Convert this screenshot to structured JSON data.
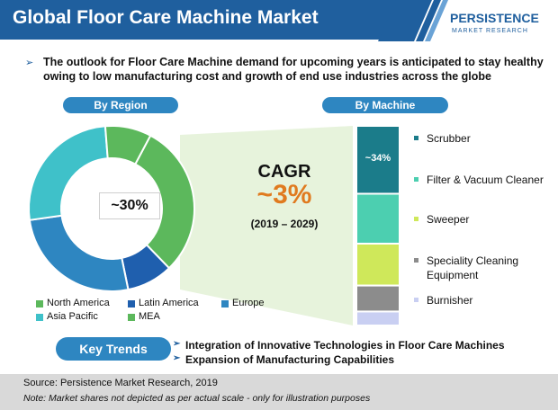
{
  "header": {
    "title": "Global Floor Care Machine Market",
    "logo_name": "PERSISTENCE",
    "logo_sub": "MARKET RESEARCH",
    "bar_color": "#1f5f9e"
  },
  "outlook": {
    "text": "The outlook for Floor Care Machine demand for upcoming years is anticipated to stay healthy owing to low manufacturing cost and growth of end use industries across the globe"
  },
  "region": {
    "pill_label": "By Region",
    "share_label": "~30%"
  },
  "machine": {
    "pill_label": "By Machine",
    "bar_label": "~34%"
  },
  "cagr": {
    "label": "CAGR",
    "value": "~3%",
    "period": "(2019 – 2029)"
  },
  "key_trends": {
    "label": "Key Trends",
    "items": [
      "Integration of Innovative Technologies in Floor Care Machines",
      "Expansion of Manufacturing Capabilities"
    ]
  },
  "footer": {
    "source": "Source: Persistence Market Research, 2019",
    "note": "Note: Market shares not depicted as per actual scale - only for illustration purposes"
  },
  "chart_data": [
    {
      "type": "pie",
      "subtype": "donut",
      "categories": [
        "North America",
        "Latin America",
        "Europe",
        "Asia Pacific",
        "MEA"
      ],
      "values": [
        30,
        9,
        26,
        26,
        9
      ],
      "colors": [
        "#5cb85c",
        "#1f5fae",
        "#2e86c1",
        "#3fc1c9",
        "#5cb85c"
      ],
      "legend_colors": [
        "#5cb85c",
        "#1f5fae",
        "#2e86c1",
        "#3fc1c9",
        "#5cb85c"
      ],
      "legend_position": "bottom"
    },
    {
      "type": "bar",
      "subtype": "stacked",
      "categories": [
        "Scrubber",
        "Filter & Vacuum Cleaner",
        "Sweeper",
        "Speciality Cleaning Equipment",
        "Burnisher"
      ],
      "values": [
        34,
        25,
        21,
        13,
        7
      ],
      "colors": [
        "#1b7c8a",
        "#4ccfb0",
        "#cfe85a",
        "#8c8c8c",
        "#c9cff2"
      ],
      "legend_position": "right"
    }
  ]
}
